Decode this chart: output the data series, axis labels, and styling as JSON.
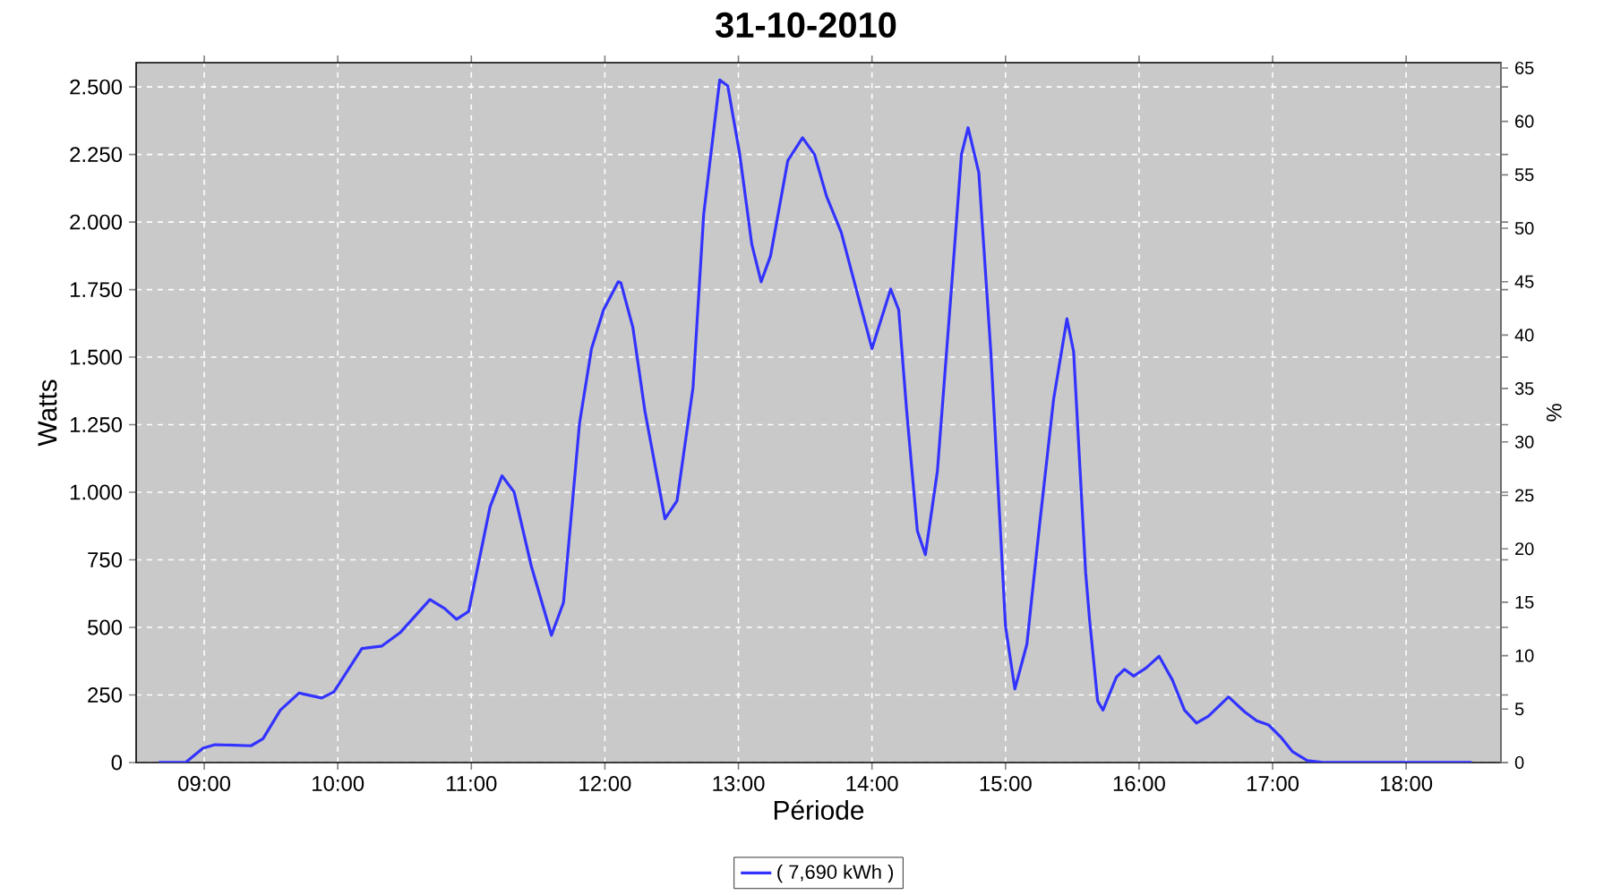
{
  "chart_data": {
    "type": "line",
    "title": "31-10-2010",
    "xlabel": "Période",
    "ylabel": "Watts",
    "y2label": "%",
    "x": [
      8.66,
      8.86,
      8.99,
      9.08,
      9.35,
      9.44,
      9.57,
      9.71,
      9.88,
      9.97,
      10.18,
      10.33,
      10.47,
      10.69,
      10.8,
      10.89,
      10.98,
      11.14,
      11.23,
      11.32,
      11.45,
      11.6,
      11.69,
      11.81,
      11.9,
      11.99,
      12.1,
      12.12,
      12.21,
      12.3,
      12.45,
      12.54,
      12.66,
      12.74,
      12.86,
      12.92,
      13.01,
      13.1,
      13.17,
      13.24,
      13.37,
      13.48,
      13.57,
      13.66,
      13.77,
      13.84,
      14.0,
      14.14,
      14.2,
      14.26,
      14.34,
      14.4,
      14.49,
      14.6,
      14.67,
      14.72,
      14.8,
      14.89,
      15.0,
      15.07,
      15.16,
      15.25,
      15.36,
      15.46,
      15.51,
      15.6,
      15.63,
      15.69,
      15.73,
      15.83,
      15.89,
      15.96,
      16.05,
      16.15,
      16.25,
      16.34,
      16.43,
      16.52,
      16.67,
      16.79,
      16.88,
      16.97,
      17.06,
      17.15,
      17.26,
      17.39,
      18.49
    ],
    "series": [
      {
        "name": "( 7,690 kWh )",
        "color": "#3333ff",
        "values": [
          0,
          0,
          53,
          66,
          62,
          88,
          194,
          257,
          239,
          261,
          422,
          431,
          482,
          603,
          570,
          530,
          559,
          946,
          1061,
          1001,
          725,
          471,
          592,
          1255,
          1532,
          1675,
          1779,
          1775,
          1609,
          1300,
          902,
          968,
          1388,
          2029,
          2526,
          2504,
          2250,
          1918,
          1779,
          1874,
          2228,
          2312,
          2250,
          2095,
          1962,
          1830,
          1532,
          1752,
          1675,
          1300,
          857,
          769,
          1079,
          1786,
          2250,
          2349,
          2183,
          1520,
          504,
          272,
          438,
          857,
          1344,
          1642,
          1520,
          703,
          526,
          227,
          194,
          316,
          345,
          320,
          349,
          393,
          305,
          194,
          146,
          172,
          243,
          188,
          155,
          139,
          95,
          40,
          7,
          0,
          0
        ]
      }
    ],
    "xlim": [
      8.49,
      18.71
    ],
    "xticks": [
      {
        "value": 9,
        "label": "09:00"
      },
      {
        "value": 10,
        "label": "10:00"
      },
      {
        "value": 11,
        "label": "11:00"
      },
      {
        "value": 12,
        "label": "12:00"
      },
      {
        "value": 13,
        "label": "13:00"
      },
      {
        "value": 14,
        "label": "14:00"
      },
      {
        "value": 15,
        "label": "15:00"
      },
      {
        "value": 16,
        "label": "16:00"
      },
      {
        "value": 17,
        "label": "17:00"
      },
      {
        "value": 18,
        "label": "18:00"
      }
    ],
    "ylim": [
      0,
      2590
    ],
    "yticks": [
      0,
      250,
      500,
      750,
      {
        "value": 1000,
        "label": "1.000"
      },
      {
        "value": 1250,
        "label": "1.250"
      },
      {
        "value": 1500,
        "label": "1.500"
      },
      {
        "value": 1750,
        "label": "1.750"
      },
      {
        "value": 2000,
        "label": "2.000"
      },
      {
        "value": 2250,
        "label": "2.250"
      },
      {
        "value": 2500,
        "label": "2.500"
      }
    ],
    "y2lim": [
      0,
      65.5
    ],
    "y2ticks": [
      0,
      5,
      10,
      15,
      20,
      25,
      30,
      35,
      40,
      45,
      50,
      55,
      60,
      65
    ],
    "grid": true,
    "legend": "bottom",
    "line_style": "solid"
  }
}
